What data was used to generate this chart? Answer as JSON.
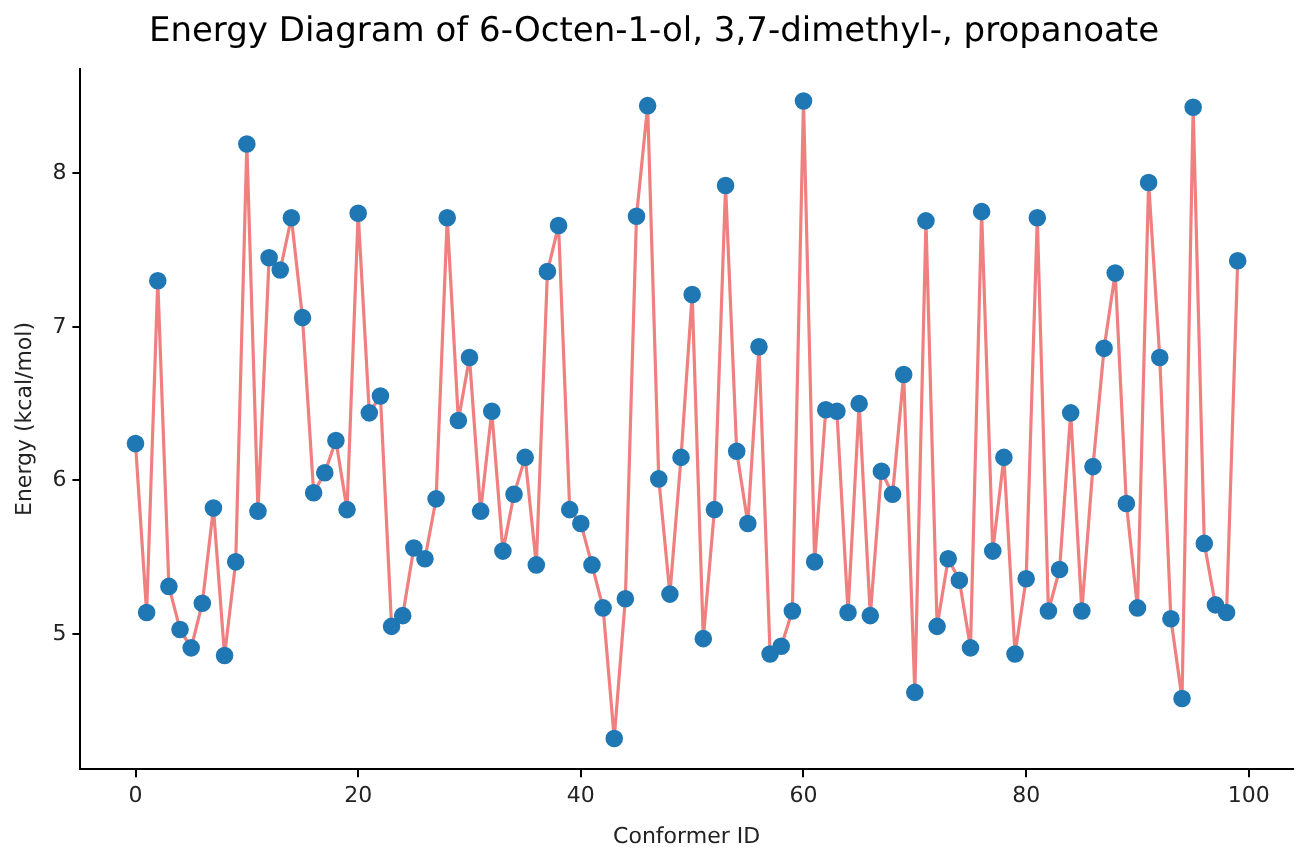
{
  "chart_data": {
    "type": "line",
    "title": "Energy Diagram of 6-Octen-1-ol, 3,7-dimethyl-, propanoate",
    "xlabel": "Conformer ID",
    "ylabel": "Energy (kcal/mol)",
    "x": [
      0,
      1,
      2,
      3,
      4,
      5,
      6,
      7,
      8,
      9,
      10,
      11,
      12,
      13,
      14,
      15,
      16,
      17,
      18,
      19,
      20,
      21,
      22,
      23,
      24,
      25,
      26,
      27,
      28,
      29,
      30,
      31,
      32,
      33,
      34,
      35,
      36,
      37,
      38,
      39,
      40,
      41,
      42,
      43,
      44,
      45,
      46,
      47,
      48,
      49,
      50,
      51,
      52,
      53,
      54,
      55,
      56,
      57,
      58,
      59,
      60,
      61,
      62,
      63,
      64,
      65,
      66,
      67,
      68,
      69,
      70,
      71,
      72,
      73,
      74,
      75,
      76,
      77,
      78,
      79,
      80,
      81,
      82,
      83,
      84,
      85,
      86,
      87,
      88,
      89,
      90,
      91,
      92,
      93,
      94,
      95,
      96,
      97,
      98,
      99
    ],
    "series": [
      {
        "color": "#f08080",
        "values": [
          6.24,
          5.14,
          7.3,
          5.31,
          5.03,
          4.91,
          5.2,
          5.82,
          4.86,
          5.47,
          8.19,
          5.8,
          7.45,
          7.37,
          7.71,
          7.06,
          5.92,
          6.05,
          6.26,
          5.81,
          7.74,
          6.44,
          6.55,
          5.05,
          5.12,
          5.56,
          5.49,
          5.88,
          7.71,
          6.39,
          6.8,
          5.8,
          6.45,
          5.54,
          5.91,
          6.15,
          5.45,
          7.36,
          7.66,
          5.81,
          5.72,
          5.45,
          5.17,
          4.32,
          5.23,
          7.72,
          8.44,
          6.01,
          5.26,
          6.15,
          7.21,
          4.97,
          5.81,
          7.92,
          6.19,
          5.72,
          6.87,
          4.87,
          4.92,
          5.15,
          8.47,
          5.47,
          6.46,
          6.45,
          5.14,
          6.5,
          5.12,
          6.06,
          5.91,
          6.69,
          4.62,
          7.69,
          5.05,
          5.49,
          5.35,
          4.91,
          7.75,
          5.54,
          6.15,
          4.87,
          5.36,
          7.71,
          5.15,
          5.42,
          6.44,
          5.15,
          6.09,
          6.86,
          7.35,
          5.85,
          5.17,
          7.94,
          6.8,
          5.1,
          4.58,
          8.43,
          5.59,
          5.19,
          5.14,
          7.43
        ],
        "colors": [
          "#1f77b4",
          "#1f77b4",
          "#1f77b4",
          "#1f77b4",
          "#1f77b4",
          "#1f77b4",
          "#1f77b4",
          "#1f77b4",
          "#1f77b4",
          "#1f77b4",
          "#1f77b4",
          "#1f77b4",
          "#1f77b4",
          "#1f77b4",
          "#1f77b4",
          "#1f77b4",
          "#1f77b4",
          "#1f77b4",
          "#1f77b4",
          "#1f77b4",
          "#1f77b4",
          "#1f77b4",
          "#1f77b4",
          "#1f77b4",
          "#1f77b4",
          "#1f77b4",
          "#1f77b4",
          "#1f77b4",
          "#1f77b4",
          "#1f77b4",
          "#1f77b4",
          "#1f77b4",
          "#1f77b4",
          "#1f77b4",
          "#1f77b4",
          "#1f77b4",
          "#1f77b4",
          "#1f77b4",
          "#1f77b4",
          "#1f77b4",
          "#1f77b4",
          "#1f77b4",
          "#1f77b4",
          "#1f77b4",
          "#1f77b4",
          "#1f77b4",
          "#1f77b4",
          "#1f77b4",
          "#1f77b4",
          "#1f77b4",
          "#1f77b4",
          "#1f77b4",
          "#1f77b4",
          "#1f77b4",
          "#1f77b4",
          "#1f77b4",
          "#1f77b4",
          "#1f77b4",
          "#1f77b4",
          "#1f77b4",
          "#1f77b4",
          "#1f77b4",
          "#1f77b4",
          "#1f77b4",
          "#1f77b4",
          "#1f77b4",
          "#1f77b4",
          "#1f77b4",
          "#1f77b4",
          "#1f77b4",
          "#1f77b4",
          "#1f77b4",
          "#1f77b4",
          "#1f77b4",
          "#1f77b4",
          "#1f77b4",
          "#1f77b4",
          "#1f77b4",
          "#1f77b4",
          "#1f77b4",
          "#1f77b4",
          "#1f77b4",
          "#1f77b4",
          "#1f77b4",
          "#1f77b4",
          "#1f77b4",
          "#1f77b4",
          "#1f77b4",
          "#1f77b4",
          "#1f77b4",
          "#1f77b4",
          "#1f77b4",
          "#1f77b4",
          "#1f77b4",
          "#1f77b4",
          "#1f77b4",
          "#1f77b4",
          "#1f77b4",
          "#1f77b4",
          "#1f77b4"
        ]
      }
    ],
    "xlim": [
      -4.95,
      103.95
    ],
    "xticks": [
      0,
      20,
      40,
      60,
      80,
      100
    ],
    "ylim": [
      4.12,
      8.68
    ],
    "yticks": [
      5,
      6,
      7,
      8
    ],
    "marker": "circle",
    "grid": false,
    "legend": false
  }
}
